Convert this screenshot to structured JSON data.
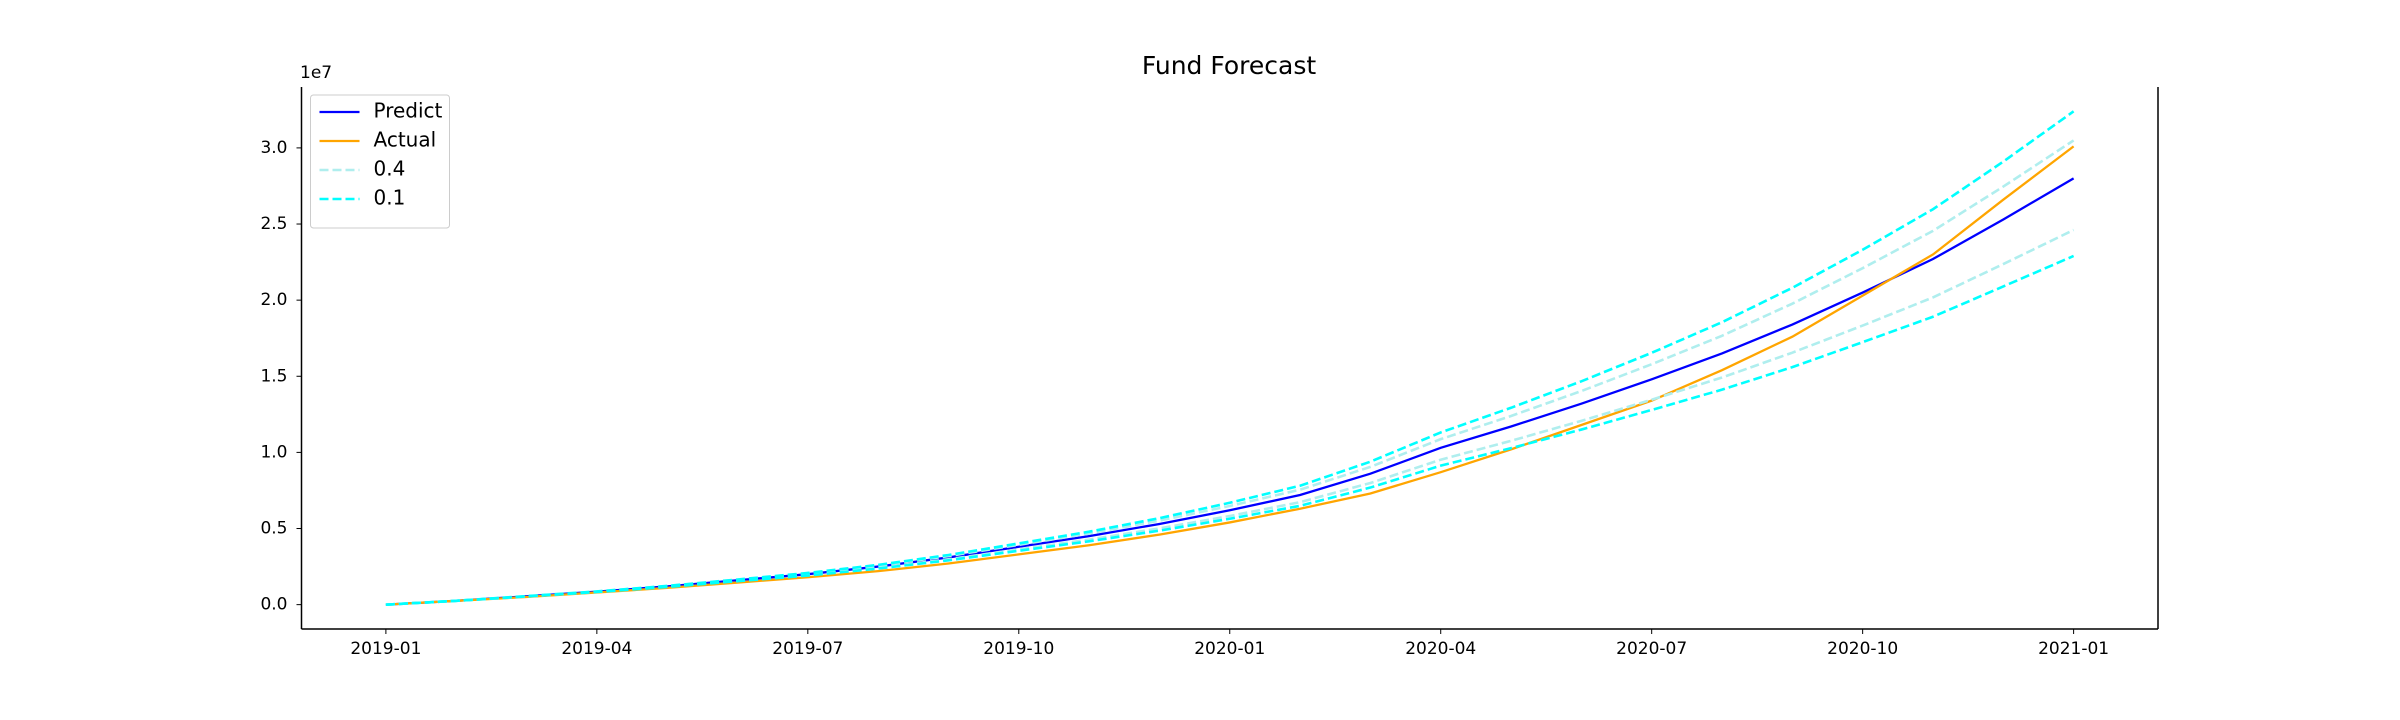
{
  "chart_data": {
    "type": "line",
    "title": "Fund Forecast",
    "y_offset_label": "1e7",
    "x": [
      "2019-01",
      "2019-02",
      "2019-03",
      "2019-04",
      "2019-05",
      "2019-06",
      "2019-07",
      "2019-08",
      "2019-09",
      "2019-10",
      "2019-11",
      "2019-12",
      "2020-01",
      "2020-02",
      "2020-03",
      "2020-04",
      "2020-05",
      "2020-06",
      "2020-07",
      "2020-08",
      "2020-09",
      "2020-10",
      "2020-11",
      "2020-12",
      "2021-01"
    ],
    "xticks": [
      "2019-01",
      "2019-04",
      "2019-07",
      "2019-10",
      "2020-01",
      "2020-04",
      "2020-07",
      "2020-10",
      "2021-01"
    ],
    "ylim": [
      -1600000,
      34000000
    ],
    "yticks": [
      {
        "value": 0,
        "label": "0.0"
      },
      {
        "value": 5000000,
        "label": "0.5"
      },
      {
        "value": 10000000,
        "label": "1.0"
      },
      {
        "value": 15000000,
        "label": "1.5"
      },
      {
        "value": 20000000,
        "label": "2.0"
      },
      {
        "value": 25000000,
        "label": "2.5"
      },
      {
        "value": 30000000,
        "label": "3.0"
      }
    ],
    "grid": false,
    "legend": "upper left",
    "series": [
      {
        "name": "Predict",
        "color": "#0000ff",
        "dashed": false,
        "values": [
          0,
          250000,
          550000,
          850000,
          1200000,
          1600000,
          2000000,
          2500000,
          3100000,
          3800000,
          4500000,
          5300000,
          6200000,
          7200000,
          8600000,
          10300000,
          11700000,
          13200000,
          14800000,
          16500000,
          18400000,
          20500000,
          22700000,
          25300000,
          28000000
        ]
      },
      {
        "name": "Actual",
        "color": "#ffa500",
        "dashed": false,
        "values": [
          0,
          250000,
          500000,
          800000,
          1100000,
          1450000,
          1800000,
          2200000,
          2700000,
          3300000,
          3900000,
          4600000,
          5400000,
          6300000,
          7300000,
          8700000,
          10200000,
          11800000,
          13400000,
          15400000,
          17600000,
          20300000,
          23000000,
          26600000,
          30100000
        ]
      },
      {
        "name": "0.4",
        "color": "#afeeee",
        "dashed": true,
        "values": [
          0,
          250000,
          550000,
          860000,
          1220000,
          1630000,
          2040000,
          2560000,
          3190000,
          3930000,
          4670000,
          5520000,
          6480000,
          7550000,
          9050000,
          10870000,
          12390000,
          14030000,
          15790000,
          17660000,
          19770000,
          22100000,
          24550000,
          27460000,
          30490000
        ],
        "values_lower": [
          0,
          250000,
          540000,
          840000,
          1180000,
          1560000,
          1940000,
          2410000,
          2980000,
          3630000,
          4270000,
          5010000,
          5820000,
          6730000,
          7990000,
          9520000,
          10760000,
          12070000,
          13460000,
          14920000,
          16550000,
          18330000,
          20180000,
          22370000,
          24610000
        ]
      },
      {
        "name": "0.1",
        "color": "#00ffff",
        "dashed": true,
        "values": [
          0,
          250000,
          560000,
          870000,
          1230000,
          1650000,
          2080000,
          2610000,
          3260000,
          4020000,
          4790000,
          5680000,
          6690000,
          7810000,
          9390000,
          11310000,
          12930000,
          14670000,
          16540000,
          18550000,
          20810000,
          23310000,
          25970000,
          29100000,
          32400000
        ],
        "values_lower": [
          0,
          250000,
          540000,
          830000,
          1160000,
          1540000,
          1910000,
          2370000,
          2910000,
          3540000,
          4160000,
          4860000,
          5640000,
          6490000,
          7690000,
          9130000,
          10280000,
          11500000,
          12790000,
          14120000,
          15600000,
          17240000,
          18910000,
          20900000,
          22900000
        ]
      }
    ]
  }
}
